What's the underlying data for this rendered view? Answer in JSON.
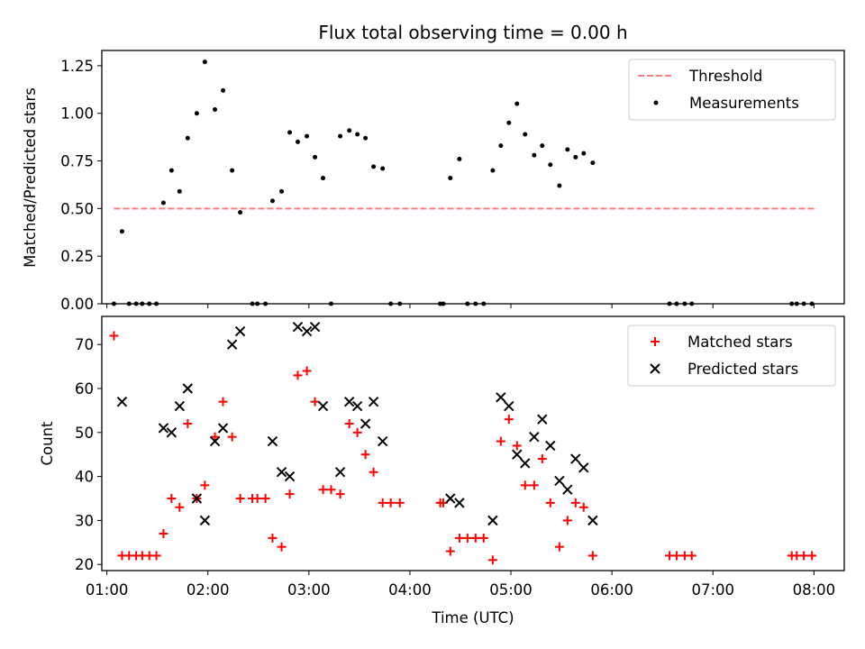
{
  "chart_data": [
    {
      "type": "scatter",
      "title": "Flux total observing time = 0.00 h",
      "xlabel": "",
      "ylabel": "Matched/Predicted stars",
      "xlim": [
        0.95,
        8.3
      ],
      "ylim": [
        0,
        1.33
      ],
      "yticks": [
        "0.00",
        "0.25",
        "0.50",
        "0.75",
        "1.00",
        "1.25"
      ],
      "legend_position": "top-right",
      "threshold": {
        "name": "Threshold",
        "value": 0.5,
        "x_range": [
          1.07,
          8.0
        ],
        "color": "#ff7f7f"
      },
      "series": [
        {
          "name": "Measurements",
          "color": "#000000",
          "marker": "dot",
          "points": [
            [
              1.07,
              0
            ],
            [
              1.15,
              0.38
            ],
            [
              1.22,
              0
            ],
            [
              1.29,
              0
            ],
            [
              1.35,
              0
            ],
            [
              1.42,
              0
            ],
            [
              1.49,
              0
            ],
            [
              1.56,
              0.53
            ],
            [
              1.64,
              0.7
            ],
            [
              1.72,
              0.59
            ],
            [
              1.8,
              0.87
            ],
            [
              1.89,
              1.0
            ],
            [
              1.97,
              1.27
            ],
            [
              2.07,
              1.02
            ],
            [
              2.15,
              1.12
            ],
            [
              2.24,
              0.7
            ],
            [
              2.32,
              0.48
            ],
            [
              2.44,
              0
            ],
            [
              2.49,
              0
            ],
            [
              2.57,
              0
            ],
            [
              2.64,
              0.54
            ],
            [
              2.73,
              0.59
            ],
            [
              2.81,
              0.9
            ],
            [
              2.89,
              0.85
            ],
            [
              2.98,
              0.88
            ],
            [
              3.06,
              0.77
            ],
            [
              3.14,
              0.66
            ],
            [
              3.22,
              0
            ],
            [
              3.31,
              0.88
            ],
            [
              3.4,
              0.91
            ],
            [
              3.48,
              0.89
            ],
            [
              3.56,
              0.87
            ],
            [
              3.64,
              0.72
            ],
            [
              3.73,
              0.71
            ],
            [
              3.81,
              0
            ],
            [
              3.9,
              0
            ],
            [
              4.3,
              0
            ],
            [
              4.33,
              0
            ],
            [
              4.4,
              0.66
            ],
            [
              4.49,
              0.76
            ],
            [
              4.57,
              0
            ],
            [
              4.65,
              0
            ],
            [
              4.73,
              0
            ],
            [
              4.82,
              0.7
            ],
            [
              4.9,
              0.83
            ],
            [
              4.98,
              0.95
            ],
            [
              5.06,
              1.05
            ],
            [
              5.14,
              0.89
            ],
            [
              5.23,
              0.78
            ],
            [
              5.31,
              0.83
            ],
            [
              5.39,
              0.73
            ],
            [
              5.48,
              0.62
            ],
            [
              5.56,
              0.81
            ],
            [
              5.64,
              0.77
            ],
            [
              5.72,
              0.79
            ],
            [
              5.81,
              0.74
            ],
            [
              6.57,
              0
            ],
            [
              6.64,
              0
            ],
            [
              6.72,
              0
            ],
            [
              6.79,
              0
            ],
            [
              7.78,
              0
            ],
            [
              7.83,
              0
            ],
            [
              7.9,
              0
            ],
            [
              7.98,
              0
            ]
          ]
        }
      ]
    },
    {
      "type": "scatter",
      "title": "",
      "xlabel": "Time (UTC)",
      "ylabel": "Count",
      "xlim": [
        0.95,
        8.3
      ],
      "ylim": [
        18.6,
        76.4
      ],
      "xticks": [
        "01:00",
        "02:00",
        "03:00",
        "04:00",
        "05:00",
        "06:00",
        "07:00",
        "08:00"
      ],
      "yticks": [
        "20",
        "30",
        "40",
        "50",
        "60",
        "70"
      ],
      "legend_position": "top-right",
      "series": [
        {
          "name": "Matched stars",
          "color": "#ff0000",
          "marker": "plus",
          "points": [
            [
              1.07,
              72
            ],
            [
              1.15,
              22
            ],
            [
              1.22,
              22
            ],
            [
              1.29,
              22
            ],
            [
              1.35,
              22
            ],
            [
              1.42,
              22
            ],
            [
              1.49,
              22
            ],
            [
              1.56,
              27
            ],
            [
              1.64,
              35
            ],
            [
              1.72,
              33
            ],
            [
              1.8,
              52
            ],
            [
              1.89,
              35
            ],
            [
              1.97,
              38
            ],
            [
              2.07,
              49
            ],
            [
              2.15,
              57
            ],
            [
              2.24,
              49
            ],
            [
              2.32,
              35
            ],
            [
              2.44,
              35
            ],
            [
              2.49,
              35
            ],
            [
              2.57,
              35
            ],
            [
              2.64,
              26
            ],
            [
              2.73,
              24
            ],
            [
              2.81,
              36
            ],
            [
              2.89,
              63
            ],
            [
              2.98,
              64
            ],
            [
              3.06,
              57
            ],
            [
              3.14,
              37
            ],
            [
              3.22,
              37
            ],
            [
              3.31,
              36
            ],
            [
              3.4,
              52
            ],
            [
              3.48,
              50
            ],
            [
              3.56,
              45
            ],
            [
              3.64,
              41
            ],
            [
              3.73,
              34
            ],
            [
              3.81,
              34
            ],
            [
              3.9,
              34
            ],
            [
              4.3,
              34
            ],
            [
              4.33,
              34
            ],
            [
              4.4,
              23
            ],
            [
              4.49,
              26
            ],
            [
              4.57,
              26
            ],
            [
              4.65,
              26
            ],
            [
              4.73,
              26
            ],
            [
              4.82,
              21
            ],
            [
              4.9,
              48
            ],
            [
              4.98,
              53
            ],
            [
              5.06,
              47
            ],
            [
              5.14,
              38
            ],
            [
              5.23,
              38
            ],
            [
              5.31,
              44
            ],
            [
              5.39,
              34
            ],
            [
              5.48,
              24
            ],
            [
              5.56,
              30
            ],
            [
              5.64,
              34
            ],
            [
              5.72,
              33
            ],
            [
              5.81,
              22
            ],
            [
              6.57,
              22
            ],
            [
              6.64,
              22
            ],
            [
              6.72,
              22
            ],
            [
              6.79,
              22
            ],
            [
              7.78,
              22
            ],
            [
              7.83,
              22
            ],
            [
              7.9,
              22
            ],
            [
              7.98,
              22
            ]
          ]
        },
        {
          "name": "Predicted stars",
          "color": "#000000",
          "marker": "x",
          "points": [
            [
              1.15,
              57
            ],
            [
              1.56,
              51
            ],
            [
              1.64,
              50
            ],
            [
              1.72,
              56
            ],
            [
              1.8,
              60
            ],
            [
              1.89,
              35
            ],
            [
              1.97,
              30
            ],
            [
              2.07,
              48
            ],
            [
              2.15,
              51
            ],
            [
              2.24,
              70
            ],
            [
              2.32,
              73
            ],
            [
              2.64,
              48
            ],
            [
              2.73,
              41
            ],
            [
              2.81,
              40
            ],
            [
              2.89,
              74
            ],
            [
              2.98,
              73
            ],
            [
              3.06,
              74
            ],
            [
              3.14,
              56
            ],
            [
              3.31,
              41
            ],
            [
              3.4,
              57
            ],
            [
              3.48,
              56
            ],
            [
              3.56,
              52
            ],
            [
              3.64,
              57
            ],
            [
              3.73,
              48
            ],
            [
              4.4,
              35
            ],
            [
              4.49,
              34
            ],
            [
              4.82,
              30
            ],
            [
              4.9,
              58
            ],
            [
              4.98,
              56
            ],
            [
              5.06,
              45
            ],
            [
              5.14,
              43
            ],
            [
              5.23,
              49
            ],
            [
              5.31,
              53
            ],
            [
              5.39,
              47
            ],
            [
              5.48,
              39
            ],
            [
              5.56,
              37
            ],
            [
              5.64,
              44
            ],
            [
              5.72,
              42
            ],
            [
              5.81,
              30
            ]
          ]
        }
      ]
    }
  ]
}
